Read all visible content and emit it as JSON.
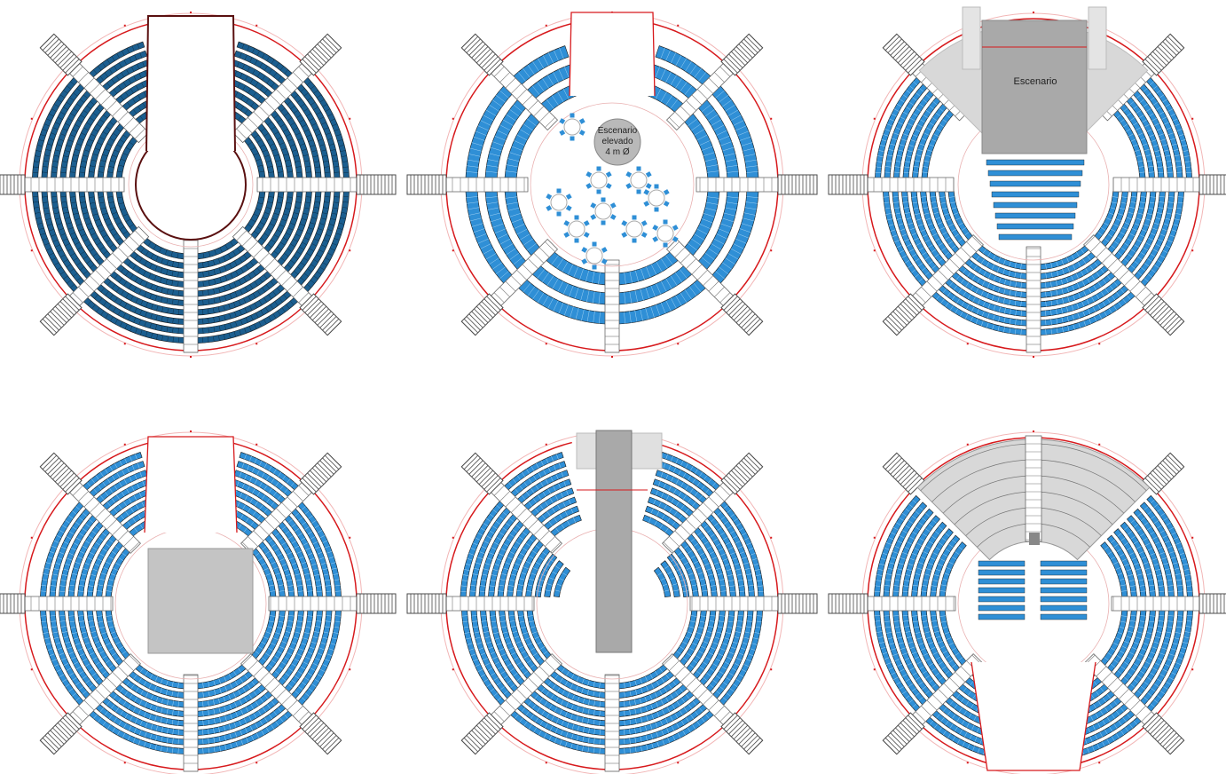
{
  "colors": {
    "seat": "#2f8fd6",
    "seat_light": "#5aaee6",
    "seat_dark": "#1b5e8f",
    "row_line": "#1a1a1a",
    "red_line": "#d7191c",
    "stage_gray": "#a9a9a9",
    "light_gray": "#d8d8d8",
    "aisle": "#ffffff",
    "stair": "#4a4a4a"
  },
  "plans": [
    {
      "id": "full-arena-open-top",
      "stage": "none"
    },
    {
      "id": "banquet-round-tables",
      "stage": "round",
      "stage_text": [
        "Escenario",
        "elevado",
        "4 m Ø"
      ]
    },
    {
      "id": "end-stage-theatre",
      "stage": "rect-top",
      "stage_text": [
        "Escenario"
      ]
    },
    {
      "id": "center-stage-square",
      "stage": "square"
    },
    {
      "id": "catwalk-runway",
      "stage": "runway"
    },
    {
      "id": "end-stage-bottom-open",
      "stage": "rect-top-seated"
    }
  ]
}
